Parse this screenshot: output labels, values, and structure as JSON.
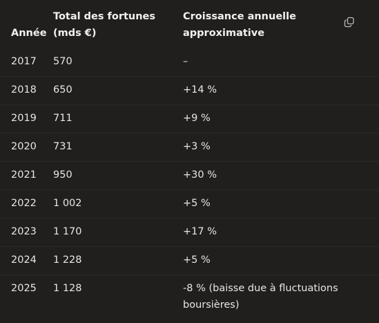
{
  "table": {
    "headers": {
      "year": "Année",
      "total": "Total des fortunes (mds €)",
      "growth": "Croissance annuelle approximative"
    },
    "rows": [
      {
        "year": "2017",
        "total": "570",
        "growth": "–"
      },
      {
        "year": "2018",
        "total": "650",
        "growth": "+14 %"
      },
      {
        "year": "2019",
        "total": "711",
        "growth": "+9 %"
      },
      {
        "year": "2020",
        "total": "731",
        "growth": "+3 %"
      },
      {
        "year": "2021",
        "total": "950",
        "growth": "+30 %"
      },
      {
        "year": "2022",
        "total": "1 002",
        "growth": "+5 %"
      },
      {
        "year": "2023",
        "total": "1 170",
        "growth": "+17 %"
      },
      {
        "year": "2024",
        "total": "1 228",
        "growth": "+5 %"
      },
      {
        "year": "2025",
        "total": "1 128",
        "growth": "-8 % (baisse due à fluctuations boursières)"
      }
    ]
  },
  "toolbar": {
    "copy_icon": "copy-icon"
  }
}
